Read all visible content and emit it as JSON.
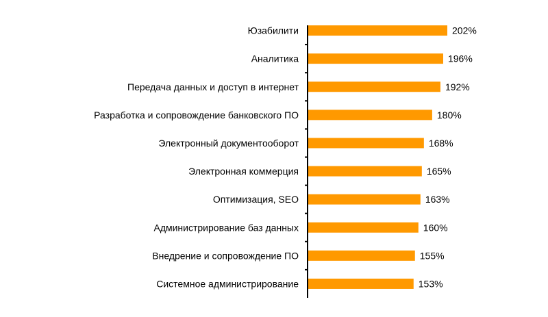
{
  "chart_data": {
    "type": "bar",
    "orientation": "horizontal",
    "categories": [
      "Юзабилити",
      "Аналитика",
      "Передача данных и доступ в интернет",
      "Разработка и сопровождение банковского ПО",
      "Электронный документооборот",
      "Электронная коммерция",
      "Оптимизация, SEO",
      "Администрирование баз данных",
      "Внедрение и сопровождение ПО",
      "Системное администрирование"
    ],
    "values": [
      202,
      196,
      192,
      180,
      168,
      165,
      163,
      160,
      155,
      153
    ],
    "value_labels": [
      "202%",
      "196%",
      "192%",
      "180%",
      "168%",
      "165%",
      "163%",
      "160%",
      "155%",
      "153%"
    ],
    "unit": "%",
    "xlim": [
      0,
      202
    ],
    "grid": false,
    "legend": "none",
    "bar_color": "#FF9900",
    "axis_color": "#000000"
  }
}
